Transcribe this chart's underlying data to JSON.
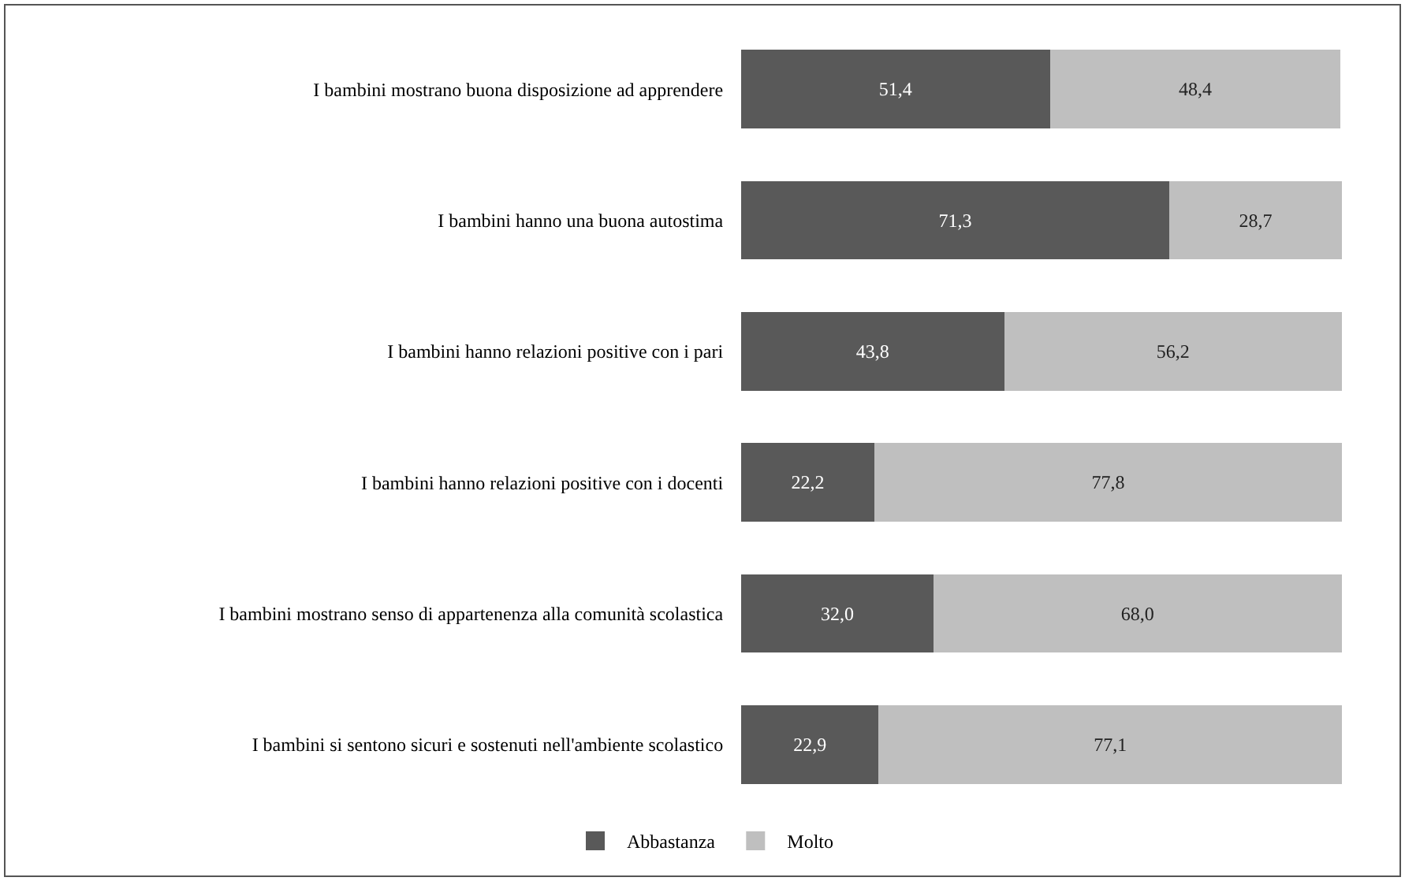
{
  "chart_data": {
    "type": "bar",
    "orientation": "horizontal",
    "stacked": true,
    "legend": "bottom",
    "categories": [
      "I bambini mostrano buona disposizione ad apprendere",
      "I bambini hanno una buona autostima",
      "I bambini hanno relazioni positive con i pari",
      "I bambini hanno relazioni positive con i docenti",
      "I bambini mostrano senso di appartenenza alla comunità scolastica",
      "I bambini si sentono sicuri e sostenuti nell'ambiente scolastico"
    ],
    "series": [
      {
        "name": "Abbastanza",
        "color": "#595959",
        "values": [
          51.4,
          71.3,
          43.8,
          22.2,
          32.0,
          22.9
        ],
        "value_labels": [
          "51,4",
          "71,3",
          "43,8",
          "22,2",
          "32,0",
          "22,9"
        ]
      },
      {
        "name": "Molto",
        "color": "#bfbfbf",
        "values": [
          48.4,
          28.7,
          56.2,
          77.8,
          68.0,
          77.1
        ],
        "value_labels": [
          "48,4",
          "28,7",
          "56,2",
          "77,8",
          "68,0",
          "77,1"
        ]
      }
    ]
  }
}
